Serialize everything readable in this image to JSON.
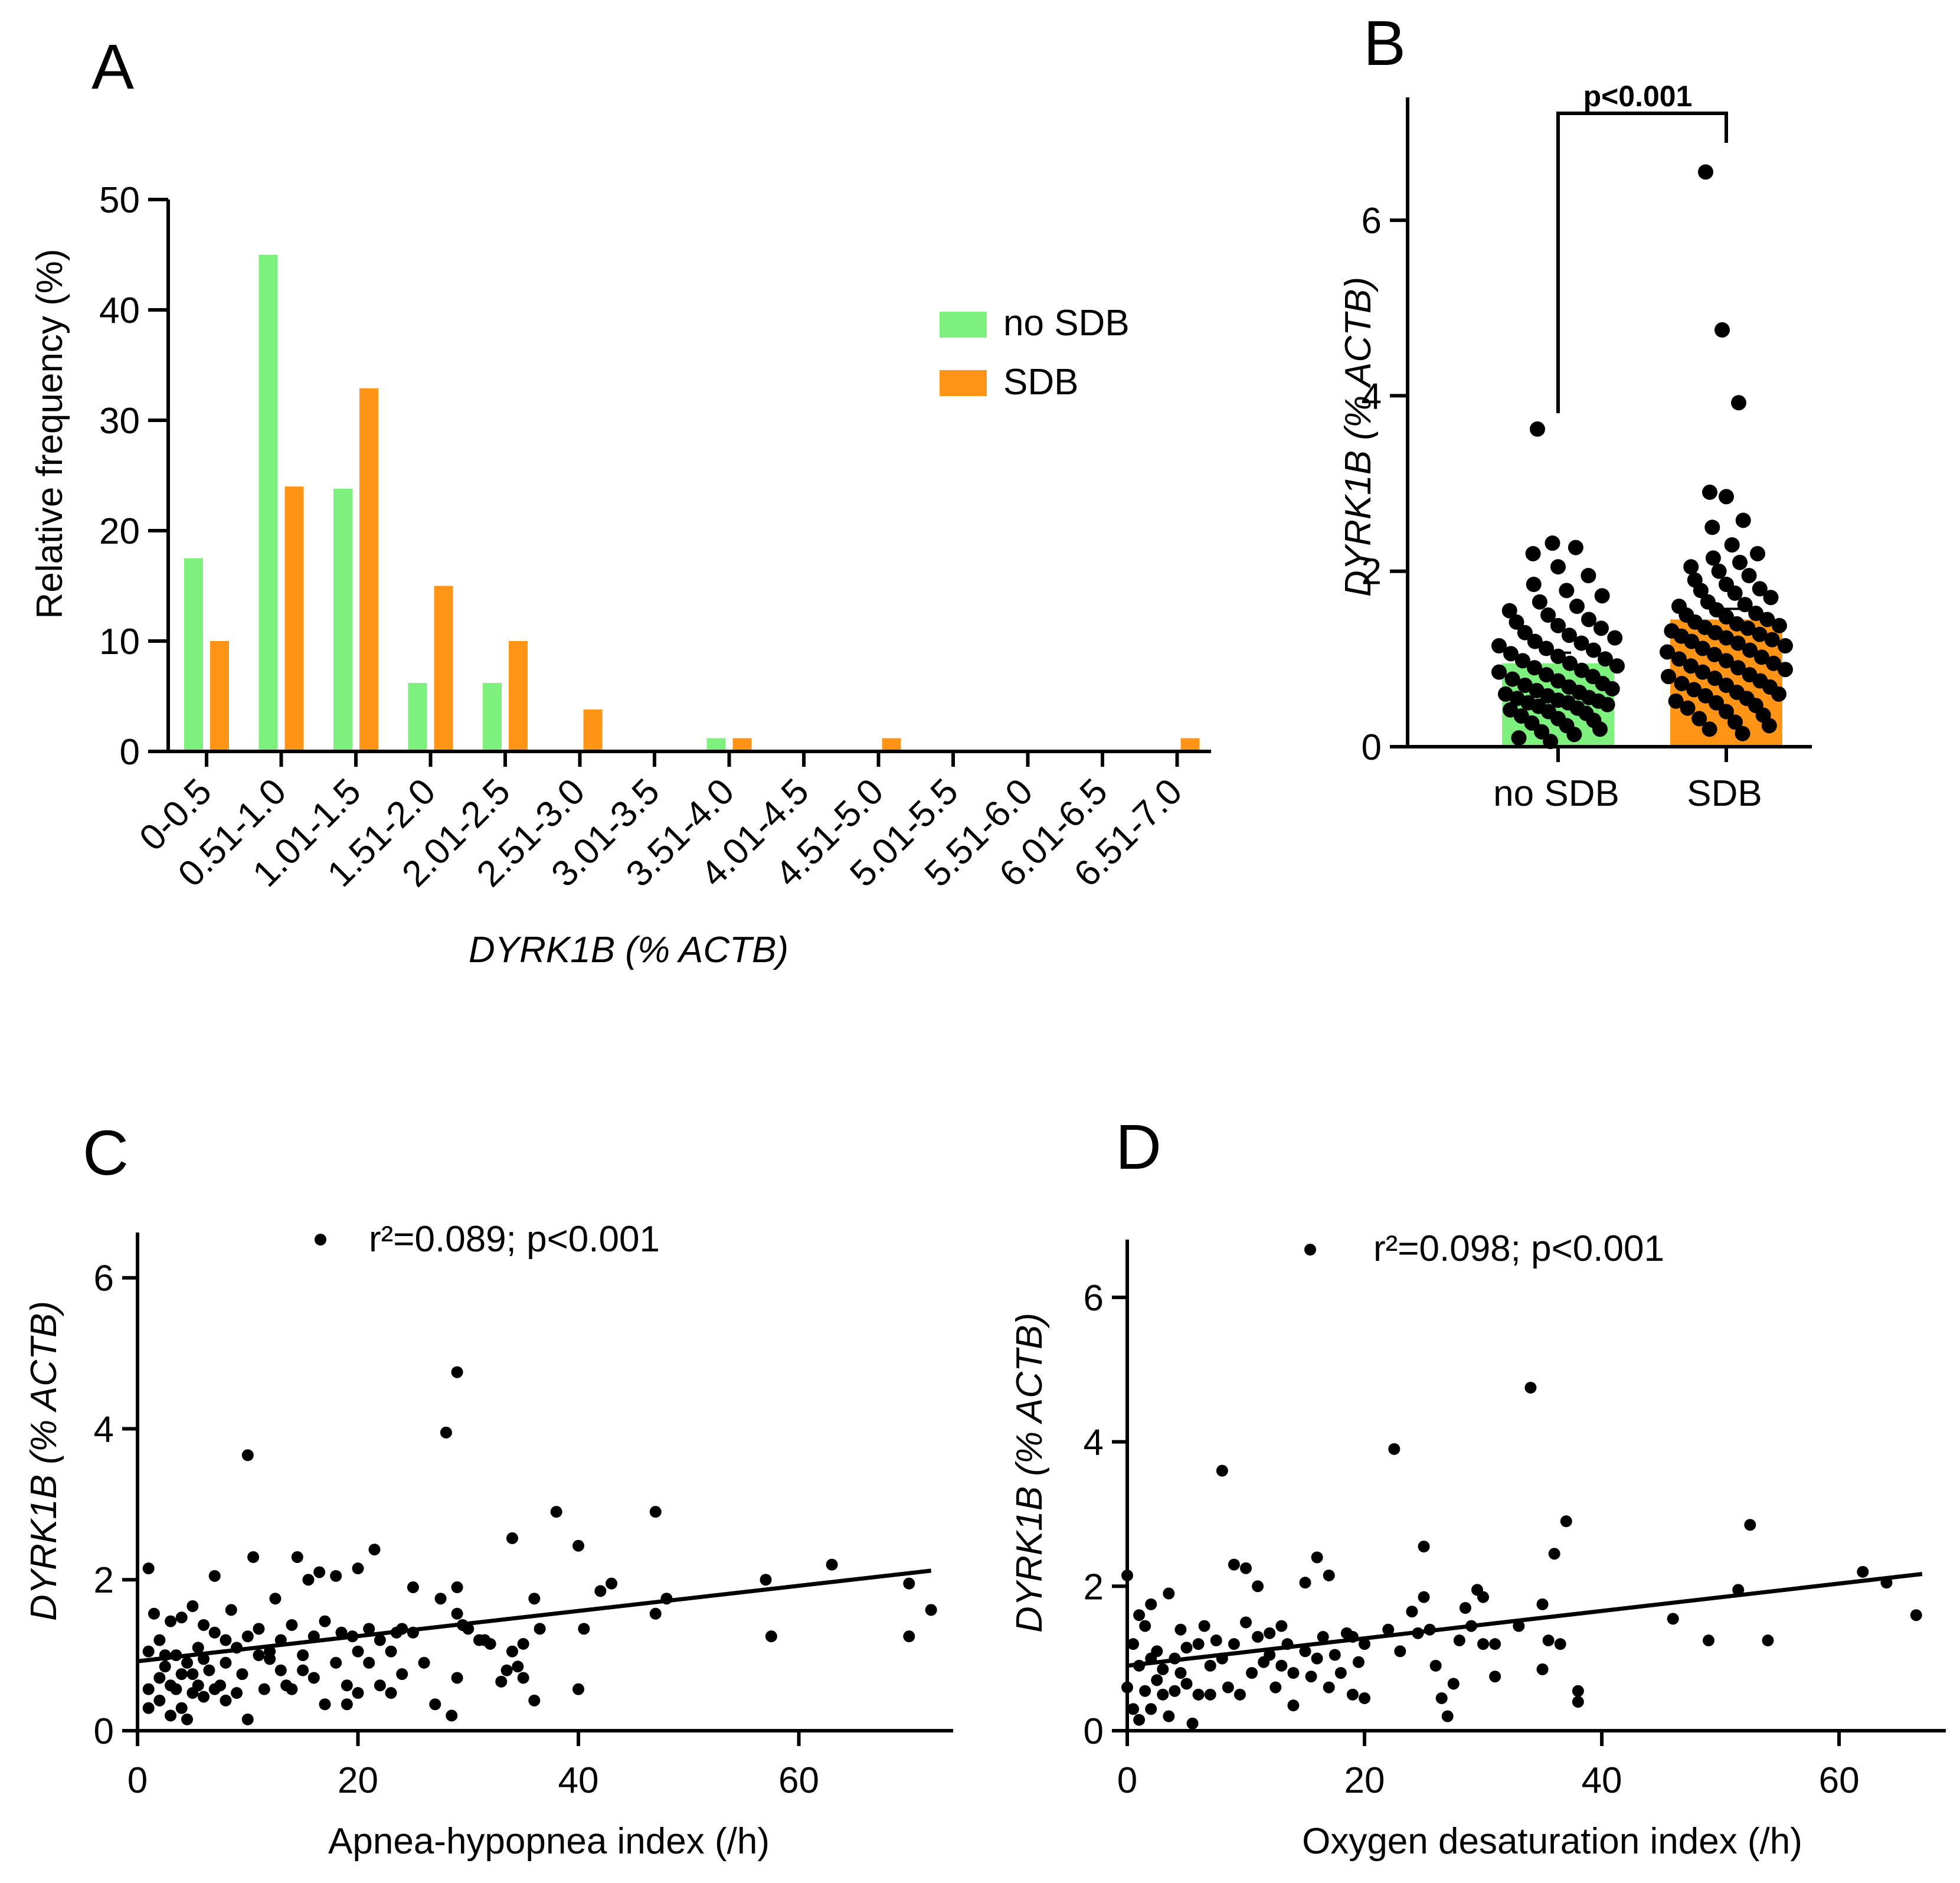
{
  "colors": {
    "noSDB": "#7df07d",
    "SDB": "#ff9417",
    "axis": "#000000"
  },
  "panels": {
    "A": "A",
    "B": "B",
    "C": "C",
    "D": "D"
  },
  "chart_data": [
    {
      "panel": "A",
      "type": "bar",
      "xlabel": "DYRK1B (% ACTB)",
      "ylabel": "Relative frequency (%)",
      "ylim": [
        0,
        50
      ],
      "yticks": [
        "0",
        "10",
        "20",
        "30",
        "40",
        "50"
      ],
      "categories": [
        "0-0.5",
        "0.51-1.0",
        "1.01-1.5",
        "1.51-2.0",
        "2.01-2.5",
        "2.51-3.0",
        "3.01-3.5",
        "3.51-4.0",
        "4.01-4.5",
        "4.51-5.0",
        "5.01-5.5",
        "5.51-6.0",
        "6.01-6.5",
        "6.51-7.0"
      ],
      "series": [
        {
          "name": "no SDB",
          "color": "#7df07d",
          "values": [
            17.5,
            45,
            23.8,
            6.2,
            6.2,
            0,
            0,
            1.2,
            0,
            0,
            0,
            0,
            0,
            0
          ]
        },
        {
          "name": "SDB",
          "color": "#ff9417",
          "values": [
            10,
            24,
            32.9,
            15,
            10,
            3.8,
            0,
            1.2,
            0,
            1.2,
            0,
            0,
            0,
            1.2
          ]
        }
      ],
      "legend_position": "top-right"
    },
    {
      "panel": "B",
      "type": "bar",
      "ylabel": "DYRK1B (% ACTB)",
      "ylim": [
        0,
        7.4
      ],
      "yticks": [
        "0",
        "2",
        "4",
        "6"
      ],
      "categories": [
        "no SDB",
        "SDB"
      ],
      "means": [
        0.95,
        1.45
      ],
      "colors": [
        "#7df07d",
        "#ff9417"
      ],
      "significance": "p<0.001",
      "points": [
        {
          "group": "no SDB",
          "values": [
            3.62,
            2.32,
            2.27,
            2.2,
            2.05,
            1.95,
            1.85,
            1.78,
            1.72,
            1.65,
            1.6,
            1.55,
            1.5,
            1.45,
            1.42,
            1.38,
            1.35,
            1.3,
            1.27,
            1.24,
            1.2,
            1.18,
            1.15,
            1.12,
            1.1,
            1.06,
            1.03,
            1.0,
            0.98,
            0.95,
            0.92,
            0.9,
            0.87,
            0.85,
            0.82,
            0.8,
            0.77,
            0.75,
            0.72,
            0.7,
            0.68,
            0.66,
            0.64,
            0.62,
            0.6,
            0.58,
            0.56,
            0.55,
            0.53,
            0.52,
            0.5,
            0.5,
            0.48,
            0.46,
            0.44,
            0.42,
            0.4,
            0.38,
            0.35,
            0.32,
            0.3,
            0.27,
            0.24,
            0.2,
            0.17,
            0.14,
            0.1,
            0.06
          ]
        },
        {
          "group": "SDB",
          "values": [
            6.55,
            4.75,
            3.92,
            2.9,
            2.85,
            2.58,
            2.5,
            2.3,
            2.2,
            2.15,
            2.1,
            2.05,
            2.0,
            1.95,
            1.9,
            1.85,
            1.8,
            1.78,
            1.75,
            1.7,
            1.65,
            1.62,
            1.6,
            1.56,
            1.52,
            1.5,
            1.48,
            1.45,
            1.42,
            1.4,
            1.38,
            1.36,
            1.35,
            1.32,
            1.3,
            1.28,
            1.26,
            1.24,
            1.22,
            1.2,
            1.18,
            1.15,
            1.12,
            1.1,
            1.08,
            1.05,
            1.02,
            1.0,
            0.98,
            0.95,
            0.92,
            0.9,
            0.88,
            0.85,
            0.82,
            0.8,
            0.78,
            0.75,
            0.72,
            0.7,
            0.68,
            0.65,
            0.62,
            0.6,
            0.58,
            0.55,
            0.52,
            0.5,
            0.47,
            0.44,
            0.4,
            0.36,
            0.32,
            0.28,
            0.24,
            0.2,
            0.15
          ]
        }
      ]
    },
    {
      "panel": "C",
      "type": "scatter",
      "xlabel": "Apnea-hypopnea index (/h)",
      "ylabel": "DYRK1B (% ACTB)",
      "xlim": [
        0,
        74
      ],
      "ylim": [
        0,
        6.6
      ],
      "xticks": [
        "0",
        "20",
        "40",
        "60"
      ],
      "yticks": [
        "0",
        "2",
        "4",
        "6"
      ],
      "annotation": "r²=0.089; p<0.001",
      "fit": {
        "x": [
          0,
          72
        ],
        "y": [
          0.92,
          2.12
        ]
      },
      "points": [
        [
          1,
          0.55
        ],
        [
          1,
          1.05
        ],
        [
          1,
          0.3
        ],
        [
          1,
          2.15
        ],
        [
          1.5,
          1.55
        ],
        [
          2,
          0.7
        ],
        [
          2,
          1.2
        ],
        [
          2,
          0.4
        ],
        [
          2.5,
          1.0
        ],
        [
          2.5,
          0.85
        ],
        [
          3,
          0.6
        ],
        [
          3,
          1.45
        ],
        [
          3,
          0.2
        ],
        [
          3.5,
          1.0
        ],
        [
          3.5,
          0.55
        ],
        [
          4,
          0.3
        ],
        [
          4,
          1.5
        ],
        [
          4,
          0.75
        ],
        [
          4.5,
          0.9
        ],
        [
          4.5,
          0.15
        ],
        [
          5,
          1.65
        ],
        [
          5,
          0.75
        ],
        [
          5,
          0.5
        ],
        [
          5.5,
          1.1
        ],
        [
          5.5,
          0.6
        ],
        [
          6,
          0.95
        ],
        [
          6,
          0.45
        ],
        [
          6,
          1.4
        ],
        [
          6.5,
          0.8
        ],
        [
          7,
          0.55
        ],
        [
          7,
          2.05
        ],
        [
          7,
          1.3
        ],
        [
          7.5,
          0.6
        ],
        [
          8,
          1.2
        ],
        [
          8,
          0.9
        ],
        [
          8,
          0.4
        ],
        [
          8.5,
          1.6
        ],
        [
          9,
          0.5
        ],
        [
          9,
          1.1
        ],
        [
          9.5,
          0.75
        ],
        [
          10,
          3.65
        ],
        [
          10,
          0.15
        ],
        [
          10,
          1.25
        ],
        [
          10.5,
          2.3
        ],
        [
          11,
          1.0
        ],
        [
          11,
          1.35
        ],
        [
          11.5,
          0.55
        ],
        [
          12,
          1.05
        ],
        [
          12,
          0.95
        ],
        [
          12.5,
          1.75
        ],
        [
          13,
          1.2
        ],
        [
          13,
          0.8
        ],
        [
          13.5,
          0.6
        ],
        [
          14,
          1.4
        ],
        [
          14,
          0.55
        ],
        [
          14.5,
          2.3
        ],
        [
          15,
          1.0
        ],
        [
          15,
          0.8
        ],
        [
          15.5,
          2.0
        ],
        [
          16,
          1.25
        ],
        [
          16,
          0.7
        ],
        [
          16.5,
          2.1
        ],
        [
          17,
          1.45
        ],
        [
          17,
          0.35
        ],
        [
          18,
          0.9
        ],
        [
          18,
          2.05
        ],
        [
          18.5,
          1.3
        ],
        [
          19,
          0.6
        ],
        [
          19,
          0.35
        ],
        [
          19.5,
          1.25
        ],
        [
          20,
          1.05
        ],
        [
          20,
          0.5
        ],
        [
          20,
          2.15
        ],
        [
          21,
          1.35
        ],
        [
          21,
          0.9
        ],
        [
          21.5,
          2.4
        ],
        [
          22,
          1.2
        ],
        [
          22,
          0.6
        ],
        [
          23,
          1.05
        ],
        [
          23,
          0.5
        ],
        [
          23.5,
          1.3
        ],
        [
          24,
          0.75
        ],
        [
          24,
          1.35
        ],
        [
          25,
          1.9
        ],
        [
          25,
          1.3
        ],
        [
          26,
          0.9
        ],
        [
          27,
          0.35
        ],
        [
          27.5,
          1.75
        ],
        [
          28,
          3.95
        ],
        [
          28.5,
          0.2
        ],
        [
          29,
          4.75
        ],
        [
          29,
          1.9
        ],
        [
          29,
          1.55
        ],
        [
          29,
          0.7
        ],
        [
          29.5,
          1.4
        ],
        [
          30,
          1.35
        ],
        [
          31,
          1.2
        ],
        [
          31.5,
          1.2
        ],
        [
          32,
          1.15
        ],
        [
          33,
          0.65
        ],
        [
          33.5,
          0.8
        ],
        [
          34,
          2.55
        ],
        [
          34,
          1.05
        ],
        [
          34.5,
          0.85
        ],
        [
          35,
          1.15
        ],
        [
          35,
          0.7
        ],
        [
          36,
          1.75
        ],
        [
          36,
          0.4
        ],
        [
          36.5,
          1.35
        ],
        [
          38,
          2.9
        ],
        [
          40,
          2.45
        ],
        [
          40,
          0.55
        ],
        [
          40.5,
          1.35
        ],
        [
          42,
          1.85
        ],
        [
          43,
          1.95
        ],
        [
          47,
          1.55
        ],
        [
          47,
          2.9
        ],
        [
          48,
          1.75
        ],
        [
          57,
          2.0
        ],
        [
          57.5,
          1.25
        ],
        [
          63,
          2.2
        ],
        [
          70,
          1.95
        ],
        [
          70,
          1.25
        ],
        [
          72,
          1.6
        ]
      ]
    },
    {
      "panel": "D",
      "type": "scatter",
      "xlabel": "Oxygen desaturation index (/h)",
      "ylabel": "DYRK1B (% ACTB)",
      "xlim": [
        0,
        69
      ],
      "ylim": [
        0,
        6.8
      ],
      "xticks": [
        "0",
        "20",
        "40",
        "60"
      ],
      "yticks": [
        "0",
        "2",
        "4",
        "6"
      ],
      "annotation": "r²=0.098; p<0.001",
      "fit": {
        "x": [
          0,
          67
        ],
        "y": [
          0.9,
          2.17
        ]
      },
      "points": [
        [
          0,
          2.15
        ],
        [
          0,
          0.6
        ],
        [
          0.5,
          1.2
        ],
        [
          0.5,
          0.3
        ],
        [
          1,
          1.6
        ],
        [
          1,
          0.9
        ],
        [
          1,
          0.15
        ],
        [
          1.5,
          1.45
        ],
        [
          1.5,
          0.55
        ],
        [
          2,
          1.0
        ],
        [
          2,
          0.3
        ],
        [
          2,
          1.75
        ],
        [
          2.5,
          0.7
        ],
        [
          2.5,
          1.1
        ],
        [
          3,
          0.5
        ],
        [
          3,
          0.85
        ],
        [
          3.5,
          1.9
        ],
        [
          3.5,
          0.2
        ],
        [
          4,
          1.0
        ],
        [
          4,
          0.55
        ],
        [
          4.5,
          1.4
        ],
        [
          4.5,
          0.8
        ],
        [
          5,
          0.65
        ],
        [
          5,
          1.15
        ],
        [
          5.5,
          0.1
        ],
        [
          6,
          1.2
        ],
        [
          6,
          0.5
        ],
        [
          6.5,
          1.45
        ],
        [
          7,
          0.9
        ],
        [
          7,
          0.5
        ],
        [
          7.5,
          1.25
        ],
        [
          8,
          3.6
        ],
        [
          8,
          1.0
        ],
        [
          8.5,
          0.6
        ],
        [
          9,
          2.3
        ],
        [
          9,
          1.2
        ],
        [
          9.5,
          0.5
        ],
        [
          10,
          2.25
        ],
        [
          10,
          1.5
        ],
        [
          10.5,
          0.8
        ],
        [
          11,
          1.3
        ],
        [
          11,
          2.0
        ],
        [
          11.5,
          0.95
        ],
        [
          12,
          1.05
        ],
        [
          12,
          1.35
        ],
        [
          12.5,
          0.6
        ],
        [
          13,
          1.45
        ],
        [
          13,
          0.9
        ],
        [
          13.5,
          1.2
        ],
        [
          14,
          0.8
        ],
        [
          14,
          0.35
        ],
        [
          15,
          2.05
        ],
        [
          15,
          1.1
        ],
        [
          15.5,
          0.75
        ],
        [
          16,
          2.4
        ],
        [
          16,
          1.0
        ],
        [
          16.5,
          1.3
        ],
        [
          17,
          0.6
        ],
        [
          17,
          2.15
        ],
        [
          17.5,
          1.05
        ],
        [
          18,
          0.8
        ],
        [
          18.5,
          1.35
        ],
        [
          19,
          0.5
        ],
        [
          19,
          1.3
        ],
        [
          19.5,
          0.95
        ],
        [
          20,
          1.2
        ],
        [
          20,
          0.45
        ],
        [
          22,
          1.4
        ],
        [
          22.5,
          3.9
        ],
        [
          23,
          1.1
        ],
        [
          24,
          1.65
        ],
        [
          24.5,
          1.35
        ],
        [
          25,
          1.85
        ],
        [
          25,
          2.55
        ],
        [
          25.5,
          1.4
        ],
        [
          26,
          0.9
        ],
        [
          26.5,
          0.45
        ],
        [
          27,
          0.2
        ],
        [
          27.5,
          0.65
        ],
        [
          28,
          1.25
        ],
        [
          28.5,
          1.7
        ],
        [
          29,
          1.45
        ],
        [
          29.5,
          1.95
        ],
        [
          30,
          1.85
        ],
        [
          30,
          1.2
        ],
        [
          31,
          1.2
        ],
        [
          31,
          0.75
        ],
        [
          33,
          1.45
        ],
        [
          34,
          4.75
        ],
        [
          35,
          1.75
        ],
        [
          35,
          0.85
        ],
        [
          35.5,
          1.25
        ],
        [
          36,
          2.45
        ],
        [
          36.5,
          1.2
        ],
        [
          37,
          2.9
        ],
        [
          38,
          0.55
        ],
        [
          38,
          0.4
        ],
        [
          46,
          1.55
        ],
        [
          49,
          1.25
        ],
        [
          51.5,
          1.95
        ],
        [
          52.5,
          2.85
        ],
        [
          54,
          1.25
        ],
        [
          62,
          2.2
        ],
        [
          64,
          2.05
        ],
        [
          66.5,
          1.6
        ]
      ]
    }
  ]
}
